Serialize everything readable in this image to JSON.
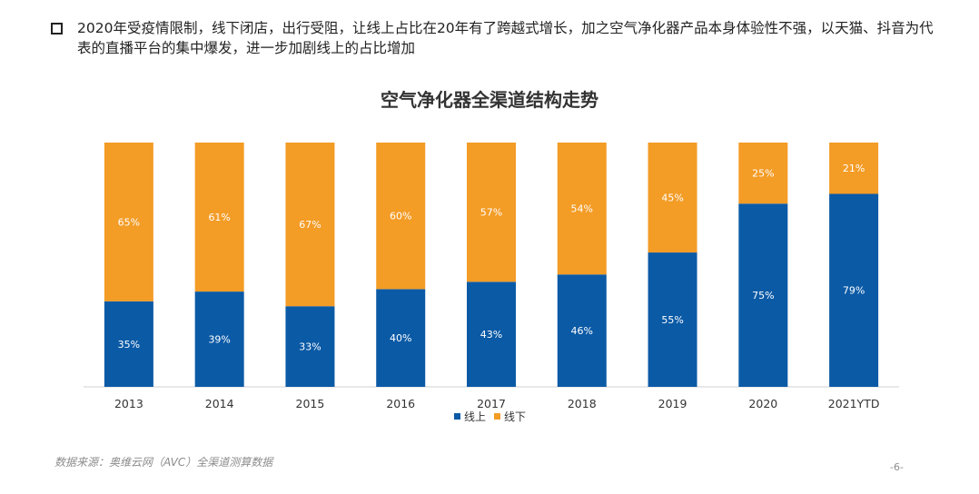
{
  "intro": {
    "text": "2020年受疫情限制，线下闭店，出行受阻，让线上占比在20年有了跨越式增长，加之空气净化器产品本身体验性不强，以天猫、抖音为代表的直播平台的集中爆发，进一步加剧线上的占比增加"
  },
  "chart_data": {
    "type": "bar",
    "stacked": true,
    "title": "空气净化器全渠道结构走势",
    "categories": [
      "2013",
      "2014",
      "2015",
      "2016",
      "2017",
      "2018",
      "2019",
      "2020",
      "2021YTD"
    ],
    "series": [
      {
        "name": "线上",
        "color": "#0b5aa6",
        "values": [
          35,
          39,
          33,
          40,
          43,
          46,
          55,
          75,
          79
        ]
      },
      {
        "name": "线下",
        "color": "#f39c26",
        "values": [
          65,
          61,
          67,
          60,
          57,
          54,
          45,
          25,
          21
        ]
      }
    ],
    "value_suffix": "%",
    "ylim": [
      0,
      100
    ],
    "legend_position": "bottom-center",
    "grid": false
  },
  "footer": {
    "source": "数据来源：奥维云网（AVC）全渠道测算数据",
    "page": "-6-"
  }
}
